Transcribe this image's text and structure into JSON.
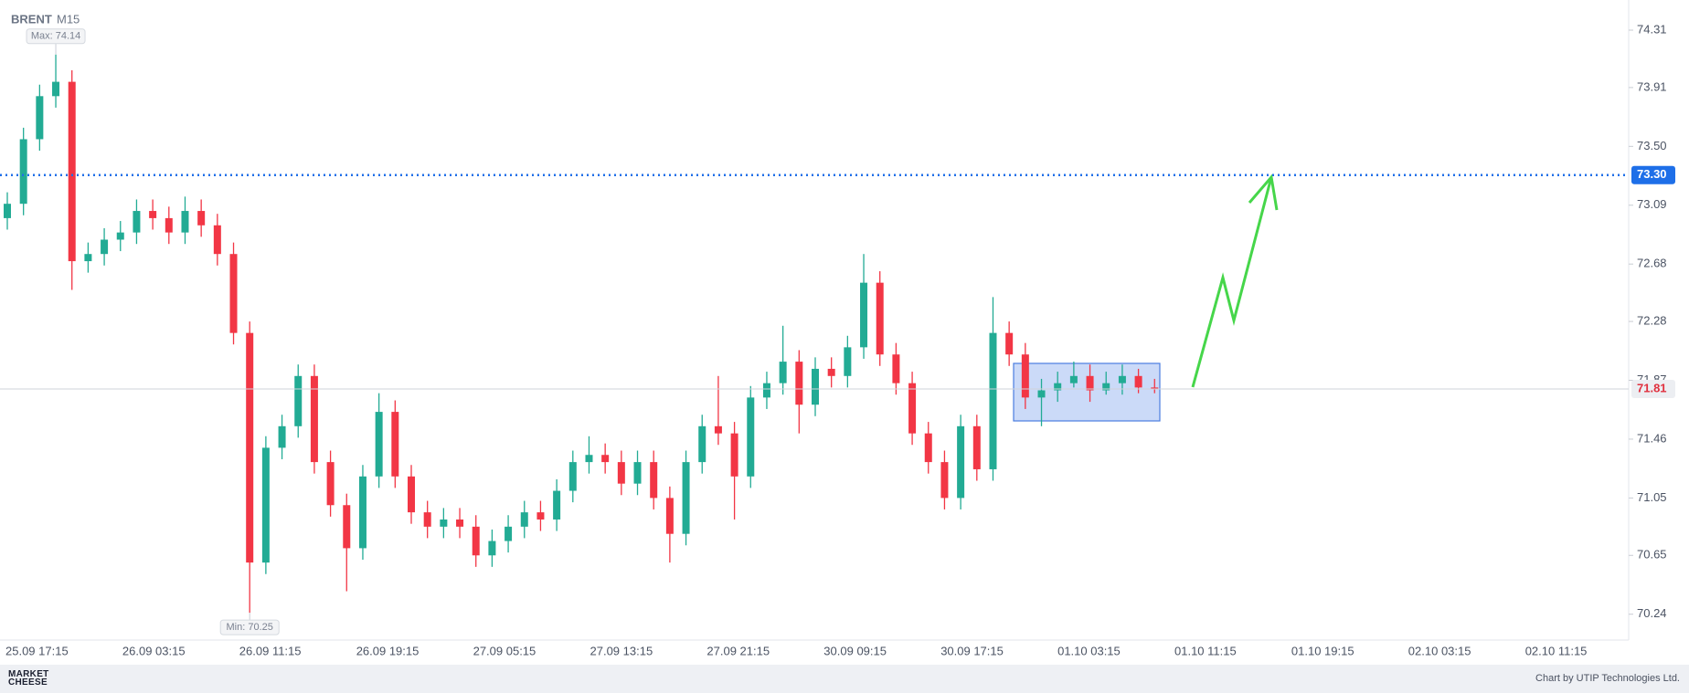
{
  "chart_data": {
    "type": "candlestick",
    "symbol": "BRENT",
    "timeframe": "M15",
    "open": [
      73.0,
      73.1,
      73.55,
      73.85,
      73.95,
      72.7,
      72.75,
      72.85,
      72.9,
      73.05,
      73.0,
      72.9,
      73.05,
      72.95,
      72.75,
      72.2,
      70.6,
      71.4,
      71.55,
      71.9,
      71.3,
      71.0,
      70.7,
      71.2,
      71.65,
      71.2,
      70.95,
      70.85,
      70.9,
      70.85,
      70.65,
      70.75,
      70.85,
      70.95,
      70.9,
      71.1,
      71.3,
      71.35,
      71.3,
      71.15,
      71.3,
      71.05,
      70.8,
      71.3,
      71.55,
      71.5,
      71.2,
      71.75,
      71.85,
      72.0,
      71.7,
      71.95,
      71.9,
      72.1,
      72.55,
      72.05,
      71.85,
      71.5,
      71.3,
      71.05,
      71.55,
      71.25,
      72.2,
      72.05,
      71.75,
      71.8,
      71.85,
      71.9,
      71.8,
      71.85,
      71.9,
      71.82
    ],
    "high": [
      73.18,
      73.63,
      73.93,
      74.14,
      74.03,
      72.83,
      72.93,
      72.98,
      73.13,
      73.13,
      73.08,
      73.15,
      73.13,
      73.03,
      72.83,
      72.28,
      71.48,
      71.63,
      71.98,
      71.98,
      71.38,
      71.08,
      71.28,
      71.78,
      71.73,
      71.28,
      71.03,
      70.98,
      70.98,
      70.93,
      70.83,
      70.93,
      71.03,
      71.03,
      71.18,
      71.38,
      71.48,
      71.43,
      71.38,
      71.38,
      71.38,
      71.13,
      71.38,
      71.63,
      71.9,
      71.58,
      71.83,
      71.93,
      72.25,
      72.08,
      72.03,
      72.03,
      72.18,
      72.75,
      72.63,
      72.13,
      71.93,
      71.58,
      71.38,
      71.63,
      71.63,
      72.45,
      72.28,
      72.13,
      71.88,
      71.93,
      72.0,
      71.98,
      71.93,
      71.98,
      71.95,
      71.88
    ],
    "low": [
      72.92,
      73.02,
      73.47,
      73.77,
      72.5,
      72.62,
      72.67,
      72.77,
      72.82,
      72.92,
      72.82,
      72.82,
      72.87,
      72.67,
      72.12,
      70.25,
      70.52,
      71.32,
      71.47,
      71.22,
      70.92,
      70.4,
      70.62,
      71.12,
      71.12,
      70.87,
      70.77,
      70.77,
      70.77,
      70.57,
      70.57,
      70.67,
      70.77,
      70.82,
      70.82,
      71.02,
      71.22,
      71.22,
      71.07,
      71.07,
      70.97,
      70.6,
      70.72,
      71.22,
      71.42,
      70.9,
      71.12,
      71.67,
      71.77,
      71.5,
      71.62,
      71.82,
      71.82,
      72.02,
      71.97,
      71.77,
      71.42,
      71.22,
      70.97,
      70.97,
      71.17,
      71.17,
      71.97,
      71.67,
      71.55,
      71.72,
      71.82,
      71.72,
      71.77,
      71.77,
      71.78,
      71.78
    ],
    "close": [
      73.1,
      73.55,
      73.85,
      73.95,
      72.7,
      72.75,
      72.85,
      72.9,
      73.05,
      73.0,
      72.9,
      73.05,
      72.95,
      72.75,
      72.2,
      70.6,
      71.4,
      71.55,
      71.9,
      71.3,
      71.0,
      70.7,
      71.2,
      71.65,
      71.2,
      70.95,
      70.85,
      70.9,
      70.85,
      70.65,
      70.75,
      70.85,
      70.95,
      70.9,
      71.1,
      71.3,
      71.35,
      71.3,
      71.15,
      71.3,
      71.05,
      70.8,
      71.3,
      71.55,
      71.5,
      71.2,
      71.75,
      71.85,
      72.0,
      71.7,
      71.95,
      71.9,
      72.1,
      72.55,
      72.05,
      71.85,
      71.5,
      71.3,
      71.05,
      71.55,
      71.25,
      72.2,
      72.05,
      71.75,
      71.8,
      71.85,
      71.9,
      71.8,
      71.85,
      71.9,
      71.82,
      71.81
    ],
    "up_color": "#22ab94",
    "down_color": "#f23645",
    "ylim": [
      70.06,
      74.52
    ],
    "yticks": [
      74.31,
      73.91,
      {
        "value": 73.5,
        "label": "73.50"
      },
      73.09,
      72.68,
      72.28,
      71.87,
      71.46,
      71.05,
      70.65,
      70.24
    ],
    "x_labels": [
      "25.09 17:15",
      "26.09 03:15",
      "26.09 11:15",
      "26.09 19:15",
      "27.09 05:15",
      "27.09 13:15",
      "27.09 21:15",
      "30.09 09:15",
      "30.09 17:15",
      "01.10 03:15",
      "01.10 11:15",
      "01.10 19:15",
      "02.10 03:15",
      "02.10 11:15"
    ],
    "level": {
      "value": 73.3,
      "label": "73.30",
      "color": "#1e6fe8"
    },
    "last_price": 71.81,
    "max": {
      "value": 74.14,
      "label": "Max: 74.14"
    },
    "min": {
      "value": 70.25,
      "label": "Min: 70.25"
    }
  },
  "footer": {
    "logo": "MARKET CHEESE",
    "credit": "Chart by UTIP Technologies Ltd."
  }
}
